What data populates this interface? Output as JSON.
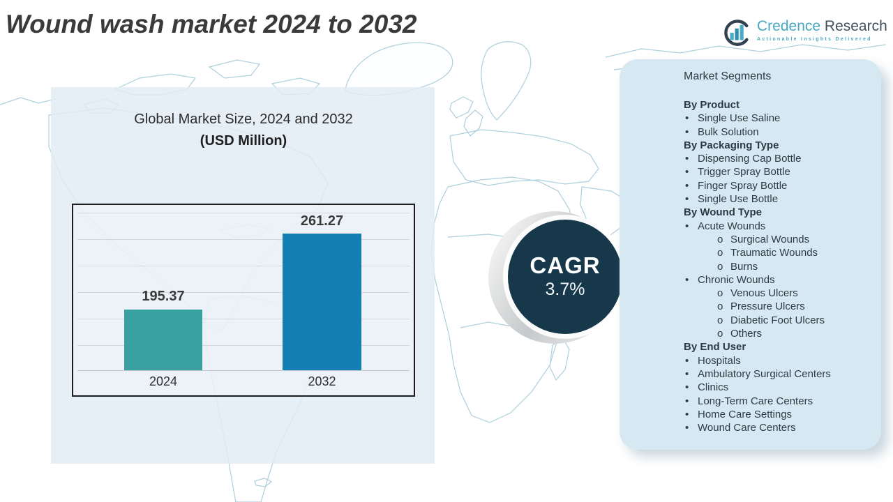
{
  "title": "Wound wash market 2024 to 2032",
  "logo": {
    "brand_primary": "Credence",
    "brand_secondary": "Research",
    "tagline": "Actionable Insights Delivered"
  },
  "chart": {
    "title_line1": "Global Market Size, 2024 and 2032",
    "title_line2": "(USD Million)"
  },
  "chart_data": {
    "type": "bar",
    "title": "Global Market Size, 2024 and 2032 (USD Million)",
    "categories": [
      "2024",
      "2032"
    ],
    "values": [
      195.37,
      261.27
    ],
    "xlabel": "",
    "ylabel": "",
    "unit": "USD Million",
    "y_axis_labels_visible": false,
    "gridlines": true,
    "legend": "none",
    "colors": [
      "#3aa1a2",
      "#1480b2"
    ]
  },
  "cagr": {
    "label": "CAGR",
    "value": "3.7%"
  },
  "segments": {
    "title": "Market Segments",
    "bullet_level1": "•",
    "bullet_level2": "o",
    "groups": [
      {
        "heading": "By Product",
        "items": [
          "Single Use Saline",
          "Bulk Solution"
        ]
      },
      {
        "heading": "By Packaging Type",
        "items": [
          "Dispensing Cap Bottle",
          "Trigger Spray Bottle",
          "Finger Spray Bottle",
          "Single Use Bottle"
        ]
      },
      {
        "heading": "By Wound Type",
        "items": [
          {
            "text": "Acute Wounds",
            "sub": [
              "Surgical Wounds",
              "Traumatic Wounds",
              "Burns"
            ]
          },
          {
            "text": "Chronic Wounds",
            "sub": [
              "Venous Ulcers",
              "Pressure Ulcers",
              "Diabetic Foot Ulcers",
              "Others"
            ]
          }
        ]
      },
      {
        "heading": "By End User",
        "items": [
          "Hospitals",
          "Ambulatory Surgical Centers",
          "Clinics",
          "Long-Term Care Centers",
          "Home Care Settings",
          "Wound Care Centers"
        ]
      }
    ]
  },
  "palette": {
    "bar_2024_teal": "#3aa1a2",
    "bar_2032_blue": "#1480b2",
    "cagr_navy": "#16384a",
    "segments_panel_blue": "#d6e8f1",
    "left_panel_blue": "#e2ebf4",
    "brand_teal": "#47a8c3",
    "brand_dark": "#41505e",
    "map_stroke": "#aecfdc",
    "title_gray": "#3a3a3a"
  }
}
